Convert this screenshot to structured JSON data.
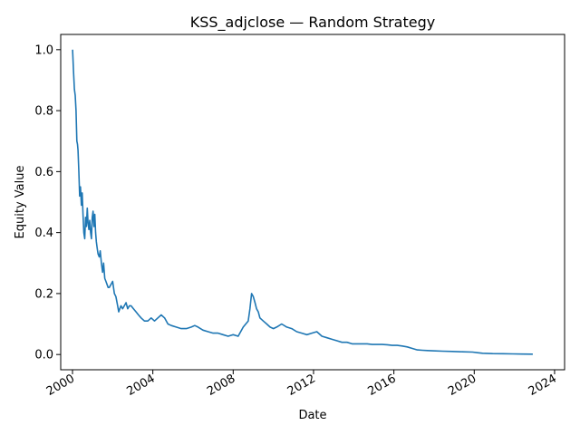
{
  "chart_data": {
    "type": "line",
    "title": "KSS_adjclose — Random Strategy",
    "xlabel": "Date",
    "ylabel": "Equity Value",
    "x_axis_type": "date",
    "xlim": [
      "1999-06-01",
      "2024-07-01"
    ],
    "ylim": [
      -0.05,
      1.05
    ],
    "x_ticks": [
      "2000",
      "2004",
      "2008",
      "2012",
      "2016",
      "2020",
      "2024"
    ],
    "y_ticks": [
      "0.0",
      "0.2",
      "0.4",
      "0.6",
      "0.8",
      "1.0"
    ],
    "grid": false,
    "legend": "none",
    "line_color": "#1f77b4",
    "series": [
      {
        "x": [
          "2000-01-03",
          "2000-01-20",
          "2000-02-05",
          "2000-02-20",
          "2000-03-05",
          "2000-03-20",
          "2000-04-01",
          "2000-04-10",
          "2000-04-25",
          "2000-05-10",
          "2000-05-25",
          "2000-06-10",
          "2000-06-25",
          "2000-07-10",
          "2000-07-25",
          "2000-08-10",
          "2000-08-25",
          "2000-09-10",
          "2000-09-25",
          "2000-10-10",
          "2000-10-25",
          "2000-11-10",
          "2000-11-25",
          "2000-12-10",
          "2000-12-25",
          "2001-01-10",
          "2001-01-25",
          "2001-02-10",
          "2001-02-25",
          "2001-03-10",
          "2001-03-25",
          "2001-04-10",
          "2001-05-01",
          "2001-05-20",
          "2001-06-10",
          "2001-07-01",
          "2001-07-20",
          "2001-08-10",
          "2001-09-01",
          "2001-09-20",
          "2001-10-10",
          "2001-11-01",
          "2001-12-01",
          "2002-01-01",
          "2002-02-01",
          "2002-03-01",
          "2002-04-01",
          "2002-04-20",
          "2002-05-10",
          "2002-06-01",
          "2002-07-01",
          "2002-08-01",
          "2002-09-01",
          "2002-10-01",
          "2002-11-01",
          "2002-12-01",
          "2003-01-15",
          "2003-03-01",
          "2003-04-15",
          "2003-06-01",
          "2003-08-01",
          "2003-10-01",
          "2003-12-01",
          "2004-02-01",
          "2004-04-01",
          "2004-06-01",
          "2004-08-01",
          "2004-10-01",
          "2004-12-01",
          "2005-03-01",
          "2005-06-01",
          "2005-09-01",
          "2005-12-01",
          "2006-02-01",
          "2006-04-01",
          "2006-07-01",
          "2006-10-01",
          "2007-01-01",
          "2007-04-01",
          "2007-07-01",
          "2007-10-01",
          "2008-01-01",
          "2008-04-01",
          "2008-07-01",
          "2008-10-01",
          "2008-11-01",
          "2008-12-01",
          "2009-01-01",
          "2009-02-01",
          "2009-03-01",
          "2009-04-01",
          "2009-05-01",
          "2009-07-01",
          "2009-09-01",
          "2009-11-01",
          "2010-01-01",
          "2010-03-01",
          "2010-06-01",
          "2010-09-01",
          "2010-12-01",
          "2011-03-01",
          "2011-06-01",
          "2011-09-01",
          "2011-12-01",
          "2012-03-01",
          "2012-06-01",
          "2012-09-01",
          "2012-12-01",
          "2013-03-01",
          "2013-06-01",
          "2013-09-01",
          "2013-12-01",
          "2014-03-01",
          "2014-06-01",
          "2014-09-01",
          "2014-12-01",
          "2015-03-01",
          "2015-06-01",
          "2015-09-01",
          "2015-12-01",
          "2016-03-01",
          "2016-06-01",
          "2016-09-01",
          "2016-12-01",
          "2017-03-01",
          "2017-06-01",
          "2017-09-01",
          "2017-12-01",
          "2018-06-01",
          "2018-12-01",
          "2019-06-01",
          "2019-12-01",
          "2020-03-01",
          "2020-06-01",
          "2020-12-01",
          "2021-06-01",
          "2021-12-01",
          "2022-06-01",
          "2022-12-01"
        ],
        "y": [
          1.0,
          0.93,
          0.87,
          0.85,
          0.8,
          0.7,
          0.69,
          0.67,
          0.6,
          0.52,
          0.55,
          0.49,
          0.53,
          0.46,
          0.4,
          0.38,
          0.45,
          0.42,
          0.48,
          0.43,
          0.41,
          0.44,
          0.4,
          0.38,
          0.45,
          0.47,
          0.42,
          0.46,
          0.4,
          0.37,
          0.35,
          0.33,
          0.32,
          0.34,
          0.3,
          0.27,
          0.3,
          0.25,
          0.24,
          0.23,
          0.22,
          0.22,
          0.23,
          0.24,
          0.2,
          0.19,
          0.16,
          0.14,
          0.15,
          0.16,
          0.15,
          0.16,
          0.17,
          0.15,
          0.16,
          0.16,
          0.15,
          0.14,
          0.13,
          0.12,
          0.11,
          0.11,
          0.12,
          0.11,
          0.12,
          0.13,
          0.12,
          0.1,
          0.095,
          0.09,
          0.085,
          0.085,
          0.09,
          0.095,
          0.09,
          0.08,
          0.075,
          0.07,
          0.07,
          0.065,
          0.06,
          0.065,
          0.06,
          0.09,
          0.11,
          0.15,
          0.2,
          0.19,
          0.17,
          0.15,
          0.14,
          0.12,
          0.11,
          0.1,
          0.09,
          0.085,
          0.09,
          0.1,
          0.09,
          0.085,
          0.075,
          0.07,
          0.065,
          0.07,
          0.075,
          0.06,
          0.055,
          0.05,
          0.045,
          0.04,
          0.04,
          0.035,
          0.035,
          0.035,
          0.035,
          0.033,
          0.033,
          0.033,
          0.032,
          0.03,
          0.03,
          0.028,
          0.025,
          0.02,
          0.015,
          0.014,
          0.013,
          0.012,
          0.011,
          0.01,
          0.009,
          0.008,
          0.006,
          0.004,
          0.003,
          0.0025,
          0.002,
          0.0015,
          0.001
        ]
      }
    ]
  }
}
